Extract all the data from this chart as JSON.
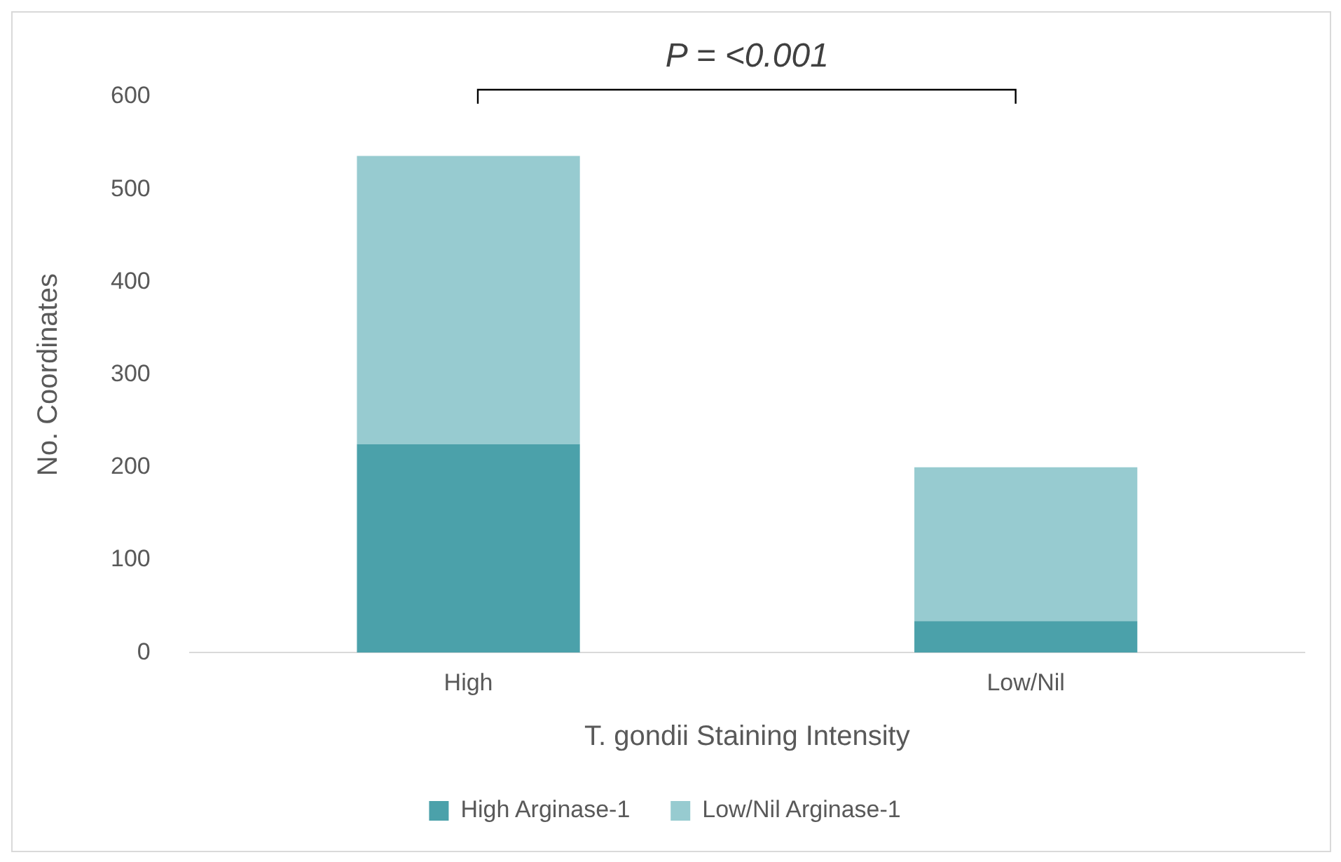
{
  "chart_data": {
    "type": "bar",
    "stacked": true,
    "categories": [
      "High",
      "Low/Nil"
    ],
    "series": [
      {
        "name": "High Arginase-1",
        "color": "#4ba1aa",
        "values": [
          225,
          34
        ]
      },
      {
        "name": "Low/Nil Arginase-1",
        "color": "#97cbd0",
        "values": [
          311,
          166
        ]
      }
    ],
    "ylim": [
      0,
      600
    ],
    "yticks": [
      0,
      100,
      200,
      300,
      400,
      500,
      600
    ],
    "ylabel": "No. Coordinates",
    "xlabel": "T. gondii Staining Intensity",
    "annotations": [
      "P = <0.001"
    ],
    "grid": false,
    "legend": "bottom"
  }
}
